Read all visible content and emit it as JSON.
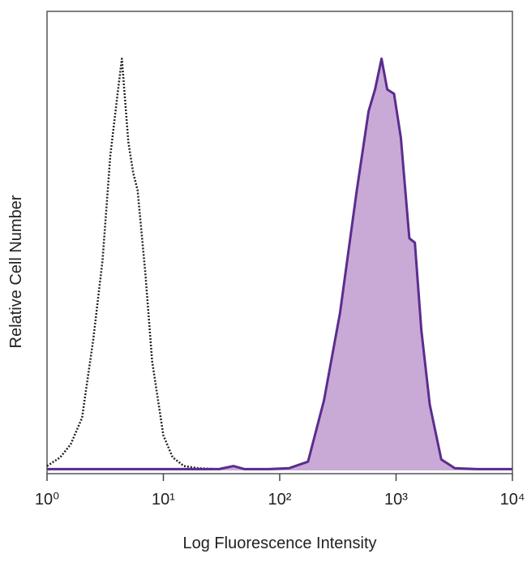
{
  "chart_data": {
    "type": "histogram_overlay",
    "x_label": "Log Fluorescence Intensity",
    "y_label": "Relative Cell Number",
    "xlim": [
      1,
      10000
    ],
    "ylim": [
      0,
      100
    ],
    "log_x": true,
    "xticks": [
      {
        "value": 1,
        "label": "10⁰"
      },
      {
        "value": 10,
        "label": "10¹"
      },
      {
        "value": 100,
        "label": "10²"
      },
      {
        "value": 1000,
        "label": "10³"
      },
      {
        "value": 10000,
        "label": "10⁴"
      }
    ],
    "series": [
      {
        "style": "dotted",
        "color": "#222222",
        "fill": "none",
        "x": [
          1,
          1.3,
          1.6,
          2,
          2.5,
          3,
          3.5,
          4,
          4.4,
          5,
          5.5,
          6,
          7,
          8,
          10,
          12,
          15,
          20,
          30,
          50,
          100
        ],
        "values": [
          1,
          3,
          6,
          12,
          30,
          48,
          72,
          85,
          94,
          75,
          68,
          64,
          45,
          25,
          8,
          3,
          1,
          0.5,
          0.3,
          0.3,
          0.3
        ]
      },
      {
        "style": "solid",
        "color": "#5b2d8e",
        "fill": "#c9aad6",
        "x": [
          1,
          10,
          30,
          40,
          50,
          80,
          120,
          175,
          240,
          330,
          460,
          580,
          660,
          750,
          840,
          960,
          1100,
          1300,
          1450,
          1650,
          1950,
          2450,
          3200,
          5000,
          10000
        ],
        "values": [
          0.3,
          0.3,
          0.3,
          1,
          0.3,
          0.3,
          0.5,
          2,
          16,
          36,
          64,
          82,
          87,
          94,
          87,
          86,
          76,
          53,
          52,
          32,
          15,
          2.5,
          0.5,
          0.3,
          0.3
        ]
      }
    ]
  }
}
